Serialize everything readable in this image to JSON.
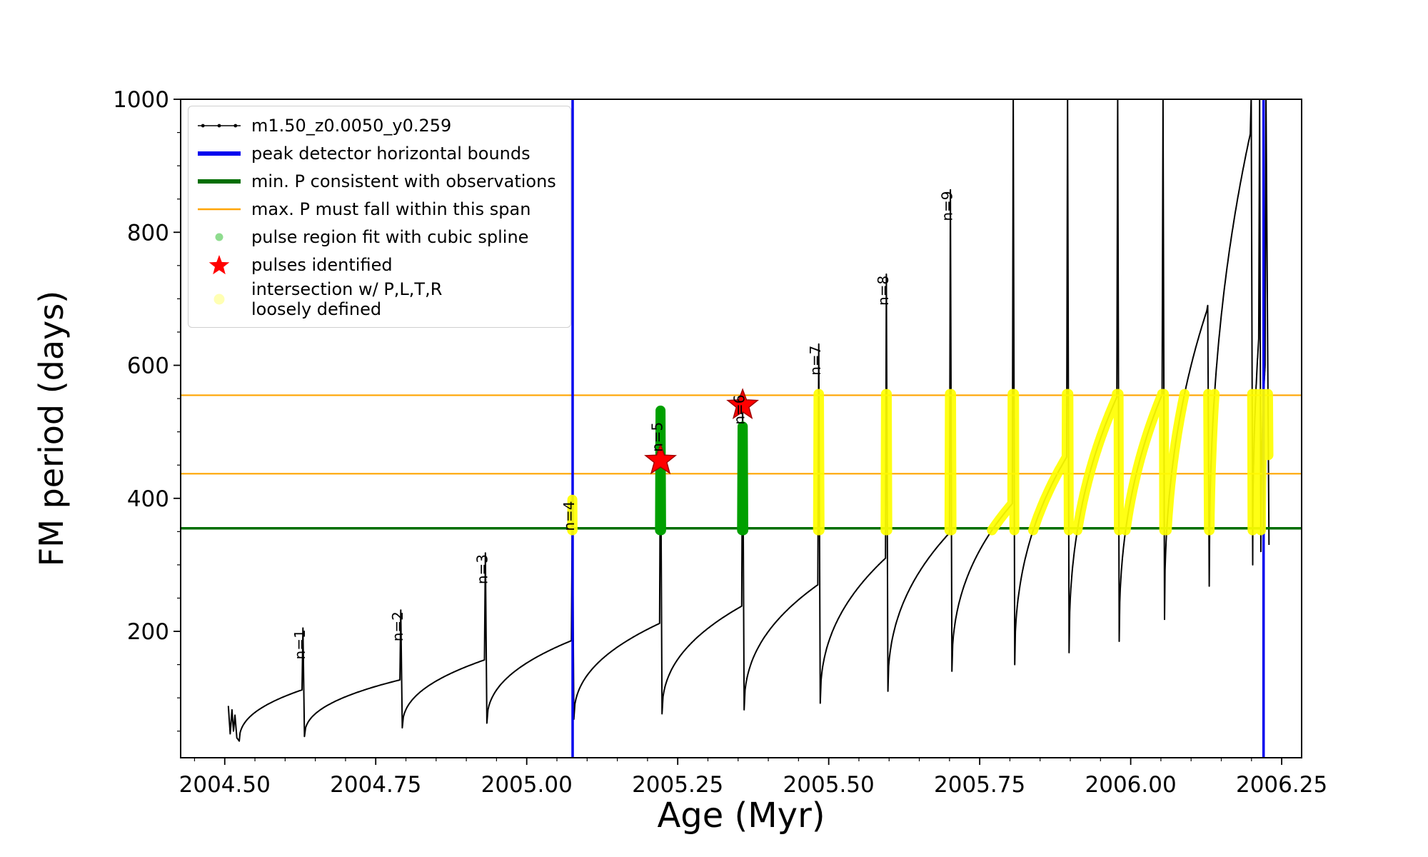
{
  "chart_data": {
    "type": "line",
    "title": "",
    "xlabel": "Age (Myr)",
    "ylabel": "FM period (days)",
    "series_name": "m1.50_z0.0050_y0.259",
    "xlim": [
      2004.427,
      2006.283
    ],
    "ylim": [
      10,
      1000
    ],
    "xticks": {
      "major": [
        2004.5,
        2004.75,
        2005.0,
        2005.25,
        2005.5,
        2005.75,
        2006.0,
        2006.25
      ],
      "labels": [
        "2004.50",
        "2004.75",
        "2005.00",
        "2005.25",
        "2005.50",
        "2005.75",
        "2006.00",
        "2006.25"
      ],
      "minor_step": 0.05
    },
    "yticks": {
      "major": [
        200,
        400,
        600,
        800,
        1000
      ],
      "labels": [
        "200",
        "400",
        "600",
        "800",
        "1000"
      ],
      "minor_step": 50
    },
    "colors": {
      "curve": "#000000",
      "bounds": "#0000ee",
      "min_p": "#006e00",
      "max_p": "#ffa500",
      "spline": "#00a000",
      "spline_light": "#8fdc8f",
      "pulses": "#ff0000",
      "intersection": "#ffff00",
      "intersection_light": "#ffffb3"
    },
    "vertical_bounds_x": [
      2005.076,
      2006.22
    ],
    "min_p_line_y": 355,
    "max_p_span_y": [
      437,
      555
    ],
    "intersection_band": [
      352,
      557
    ],
    "initial_scatter": [
      [
        2004.506,
        88
      ],
      [
        2004.509,
        46
      ],
      [
        2004.512,
        82
      ],
      [
        2004.5145,
        50
      ],
      [
        2004.517,
        74
      ],
      [
        2004.52,
        40
      ]
    ],
    "pulse_cycles": [
      {
        "t0": 2004.524,
        "t1": 2004.628,
        "v0": 35,
        "v1": 112,
        "spike": 205,
        "label": "n=1"
      },
      {
        "t0": 2004.632,
        "t1": 2004.79,
        "v0": 42,
        "v1": 127,
        "spike": 232,
        "label": "n=2"
      },
      {
        "t0": 2004.794,
        "t1": 2004.93,
        "v0": 55,
        "v1": 157,
        "spike": 318,
        "label": "n=3"
      },
      {
        "t0": 2004.934,
        "t1": 2005.074,
        "v0": 62,
        "v1": 186,
        "spike": 398,
        "label": "n=4"
      },
      {
        "t0": 2005.078,
        "t1": 2005.22,
        "v0": 68,
        "v1": 212,
        "spike": 532,
        "label": "n=5"
      },
      {
        "t0": 2005.224,
        "t1": 2005.356,
        "v0": 76,
        "v1": 238,
        "spike": 548,
        "label": "n=6"
      },
      {
        "t0": 2005.36,
        "t1": 2005.482,
        "v0": 82,
        "v1": 270,
        "spike": 632,
        "label": "n=7"
      },
      {
        "t0": 2005.486,
        "t1": 2005.594,
        "v0": 92,
        "v1": 310,
        "spike": 737,
        "label": "n=8"
      },
      {
        "t0": 2005.598,
        "t1": 2005.7,
        "v0": 110,
        "v1": 348,
        "spike": 864,
        "label": "n=9"
      },
      {
        "t0": 2005.704,
        "t1": 2005.804,
        "v0": 140,
        "v1": 392,
        "spike": 1005,
        "label": null
      },
      {
        "t0": 2005.808,
        "t1": 2005.894,
        "v0": 150,
        "v1": 462,
        "spike": 1005,
        "label": null
      },
      {
        "t0": 2005.898,
        "t1": 2005.977,
        "v0": 168,
        "v1": 552,
        "spike": 1005,
        "label": null
      },
      {
        "t0": 2005.981,
        "t1": 2006.052,
        "v0": 185,
        "v1": 556,
        "spike": 1005,
        "label": null
      },
      {
        "t0": 2006.056,
        "t1": 2006.126,
        "v0": 218,
        "v1": 682,
        "spike": 690,
        "label": null
      },
      {
        "t0": 2006.13,
        "t1": 2006.198,
        "v0": 268,
        "v1": 948,
        "spike": 1005,
        "label": null
      },
      {
        "t0": 2006.202,
        "t1": 2006.212,
        "v0": 300,
        "v1": 640,
        "spike": 1005,
        "label": null
      },
      {
        "t0": 2006.2155,
        "t1": 2006.2225,
        "v0": 320,
        "v1": 600,
        "spike": 1005,
        "label": null
      }
    ],
    "tail": [
      2006.229,
      330
    ],
    "pulse_labels": [
      {
        "text": "n=1",
        "x": 2004.6325,
        "y": 203
      },
      {
        "text": "n=2",
        "x": 2004.7945,
        "y": 230
      },
      {
        "text": "n=3",
        "x": 2004.9345,
        "y": 316
      },
      {
        "text": "n=4",
        "x": 2005.0785,
        "y": 396
      },
      {
        "text": "n=5",
        "x": 2005.2245,
        "y": 515
      },
      {
        "text": "n=6",
        "x": 2005.3605,
        "y": 556
      },
      {
        "text": "n=7",
        "x": 2005.4865,
        "y": 630
      },
      {
        "text": "n=8",
        "x": 2005.5985,
        "y": 735
      },
      {
        "text": "n=9",
        "x": 2005.7045,
        "y": 862
      }
    ],
    "pulses_identified": [
      {
        "x": 2005.2215,
        "y": 457
      },
      {
        "x": 2005.3575,
        "y": 540
      }
    ],
    "spline_regions": [
      {
        "t0": 2005.215,
        "t1": 2005.228,
        "vlo": 352,
        "vhi": 532
      },
      {
        "t0": 2005.351,
        "t1": 2005.364,
        "vlo": 352,
        "vhi": 508
      }
    ],
    "yellow_regions": [
      {
        "t0": 2005.062,
        "t1": 2005.078
      },
      {
        "t0": 2005.476,
        "t1": 2005.492
      },
      {
        "t0": 2005.588,
        "t1": 2005.604
      },
      {
        "t0": 2005.694,
        "t1": 2005.71
      },
      {
        "t0": 2005.762,
        "t1": 2006.228
      }
    ],
    "legend": {
      "items": [
        {
          "label": "m1.50_z0.0050_y0.259",
          "marker": "line_dots",
          "color": "curve"
        },
        {
          "label": "peak detector horizontal bounds",
          "marker": "hline_thick",
          "color": "bounds"
        },
        {
          "label": "min. P consistent with observations",
          "marker": "hline_thick",
          "color": "min_p"
        },
        {
          "label": "max. P must fall within this span",
          "marker": "hline_thin",
          "color": "max_p"
        },
        {
          "label": "pulse region fit with cubic spline",
          "marker": "dot_small",
          "color": "spline_light"
        },
        {
          "label": "pulses identified",
          "marker": "star",
          "color": "pulses"
        },
        {
          "label": "intersection w/ P,L,T,R\nloosely defined",
          "marker": "dot_large",
          "color": "intersection_light"
        }
      ]
    }
  }
}
